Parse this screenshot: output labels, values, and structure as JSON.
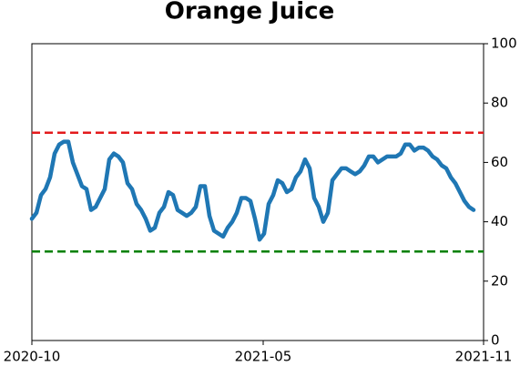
{
  "chart_data": {
    "type": "line",
    "title": "Orange Juice",
    "series": [
      {
        "color": "#1f77b4",
        "values": [
          41,
          43,
          49,
          51,
          55,
          63,
          66,
          67,
          67,
          60,
          56,
          52,
          51,
          44,
          45,
          48,
          51,
          61,
          63,
          62,
          60,
          53,
          51,
          46,
          44,
          41,
          37,
          38,
          43,
          45,
          50,
          49,
          44,
          43,
          42,
          43,
          45,
          52,
          52,
          42,
          37,
          36,
          35,
          38,
          40,
          43,
          48,
          48,
          47,
          41,
          34,
          36,
          46,
          49,
          54,
          53,
          50,
          51,
          55,
          57,
          61,
          58,
          48,
          45,
          40,
          43,
          54,
          56,
          58,
          58,
          57,
          56,
          57,
          59,
          62,
          62,
          60,
          61,
          62,
          62,
          62,
          63,
          66,
          66,
          64,
          65,
          65,
          64,
          62,
          61,
          59,
          58,
          55,
          53,
          50,
          47,
          45,
          44
        ]
      }
    ],
    "hlines": [
      {
        "value": 70,
        "color": "#e31a1c"
      },
      {
        "value": 30,
        "color": "#008000"
      }
    ],
    "xlim": [
      0,
      99.2
    ],
    "xticks": [
      {
        "value": 0,
        "label": "2020-10"
      },
      {
        "value": 50.8,
        "label": "2021-05"
      },
      {
        "value": 99.2,
        "label": "2021-11"
      }
    ],
    "ylim": [
      0,
      100
    ],
    "yticks": [
      0,
      20,
      40,
      60,
      80,
      100
    ],
    "y_axis_side": "right"
  }
}
